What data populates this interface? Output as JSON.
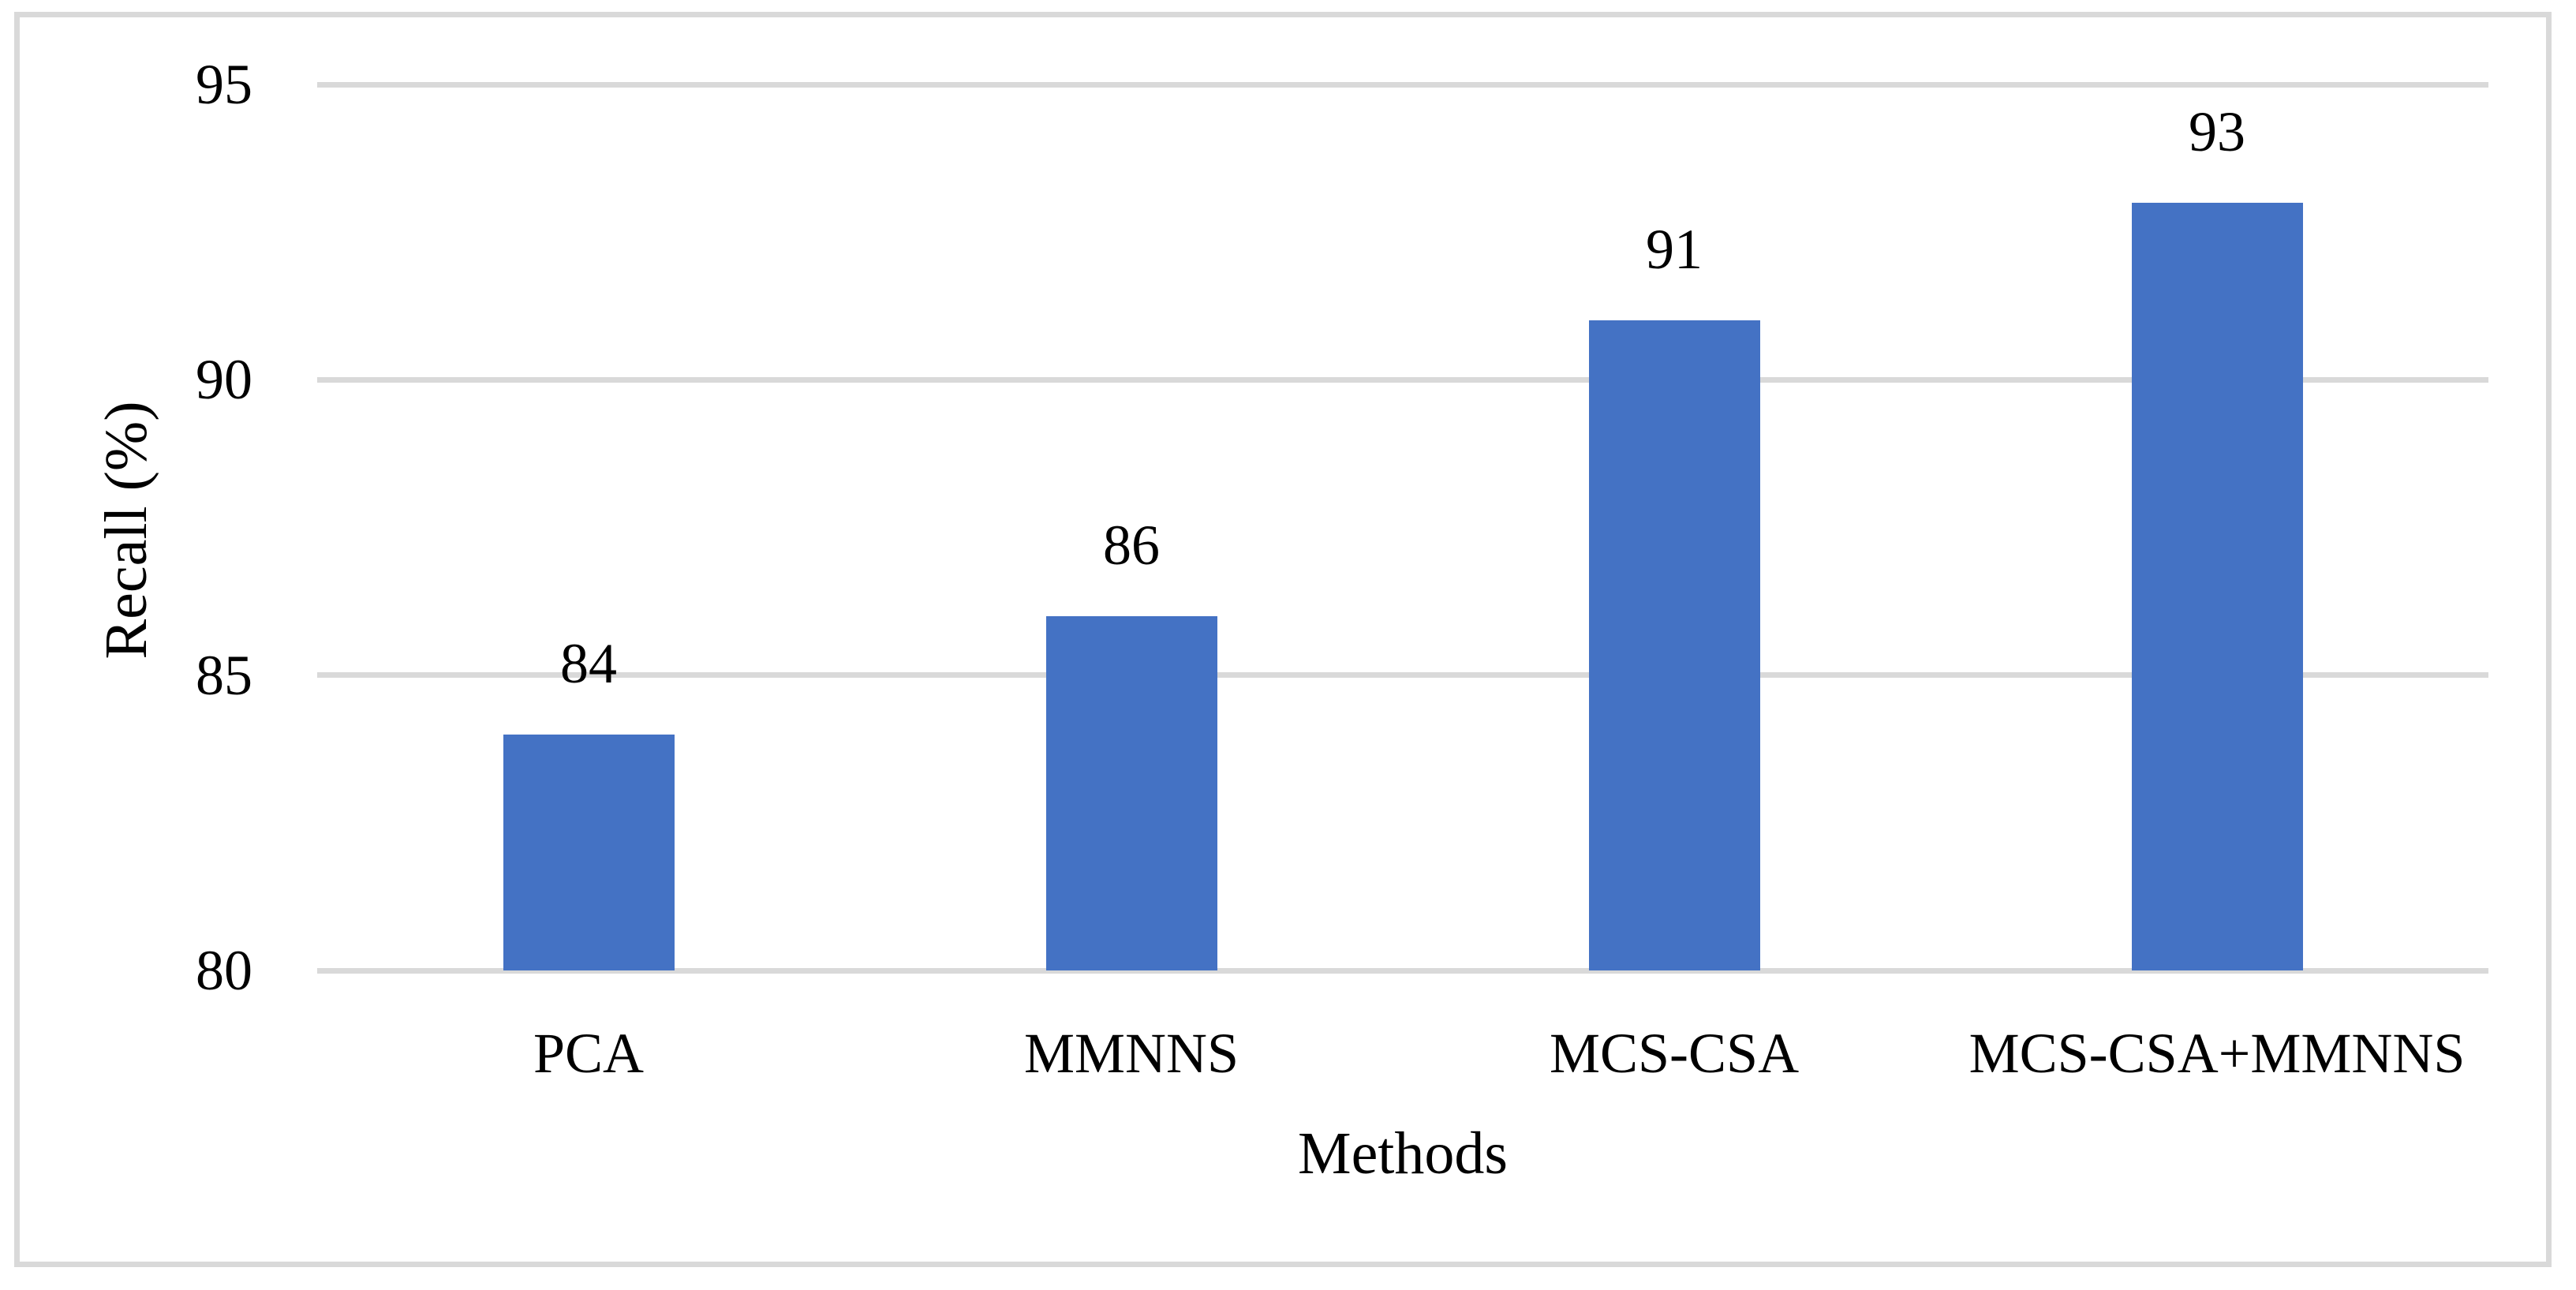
{
  "chart_data": {
    "type": "bar",
    "title": "",
    "xlabel": "Methods",
    "ylabel": "Recall (%)",
    "categories": [
      "PCA",
      "MMNNS",
      "MCS-CSA",
      "MCS-CSA+MMNNS"
    ],
    "values": [
      84,
      86,
      91,
      93
    ],
    "data_labels": [
      "84",
      "86",
      "91",
      "93"
    ],
    "yticks": [
      80,
      85,
      90,
      95
    ],
    "ytick_labels": [
      "80",
      "85",
      "90",
      "95"
    ],
    "ylim": [
      80,
      95
    ],
    "grid": "horizontal-only",
    "legend": "none",
    "colors": {
      "bar": "#4472C4",
      "gridline": "#D9D9D9",
      "frame_border": "#D9D9D9",
      "text": "#000000",
      "background": "#FFFFFF"
    }
  }
}
